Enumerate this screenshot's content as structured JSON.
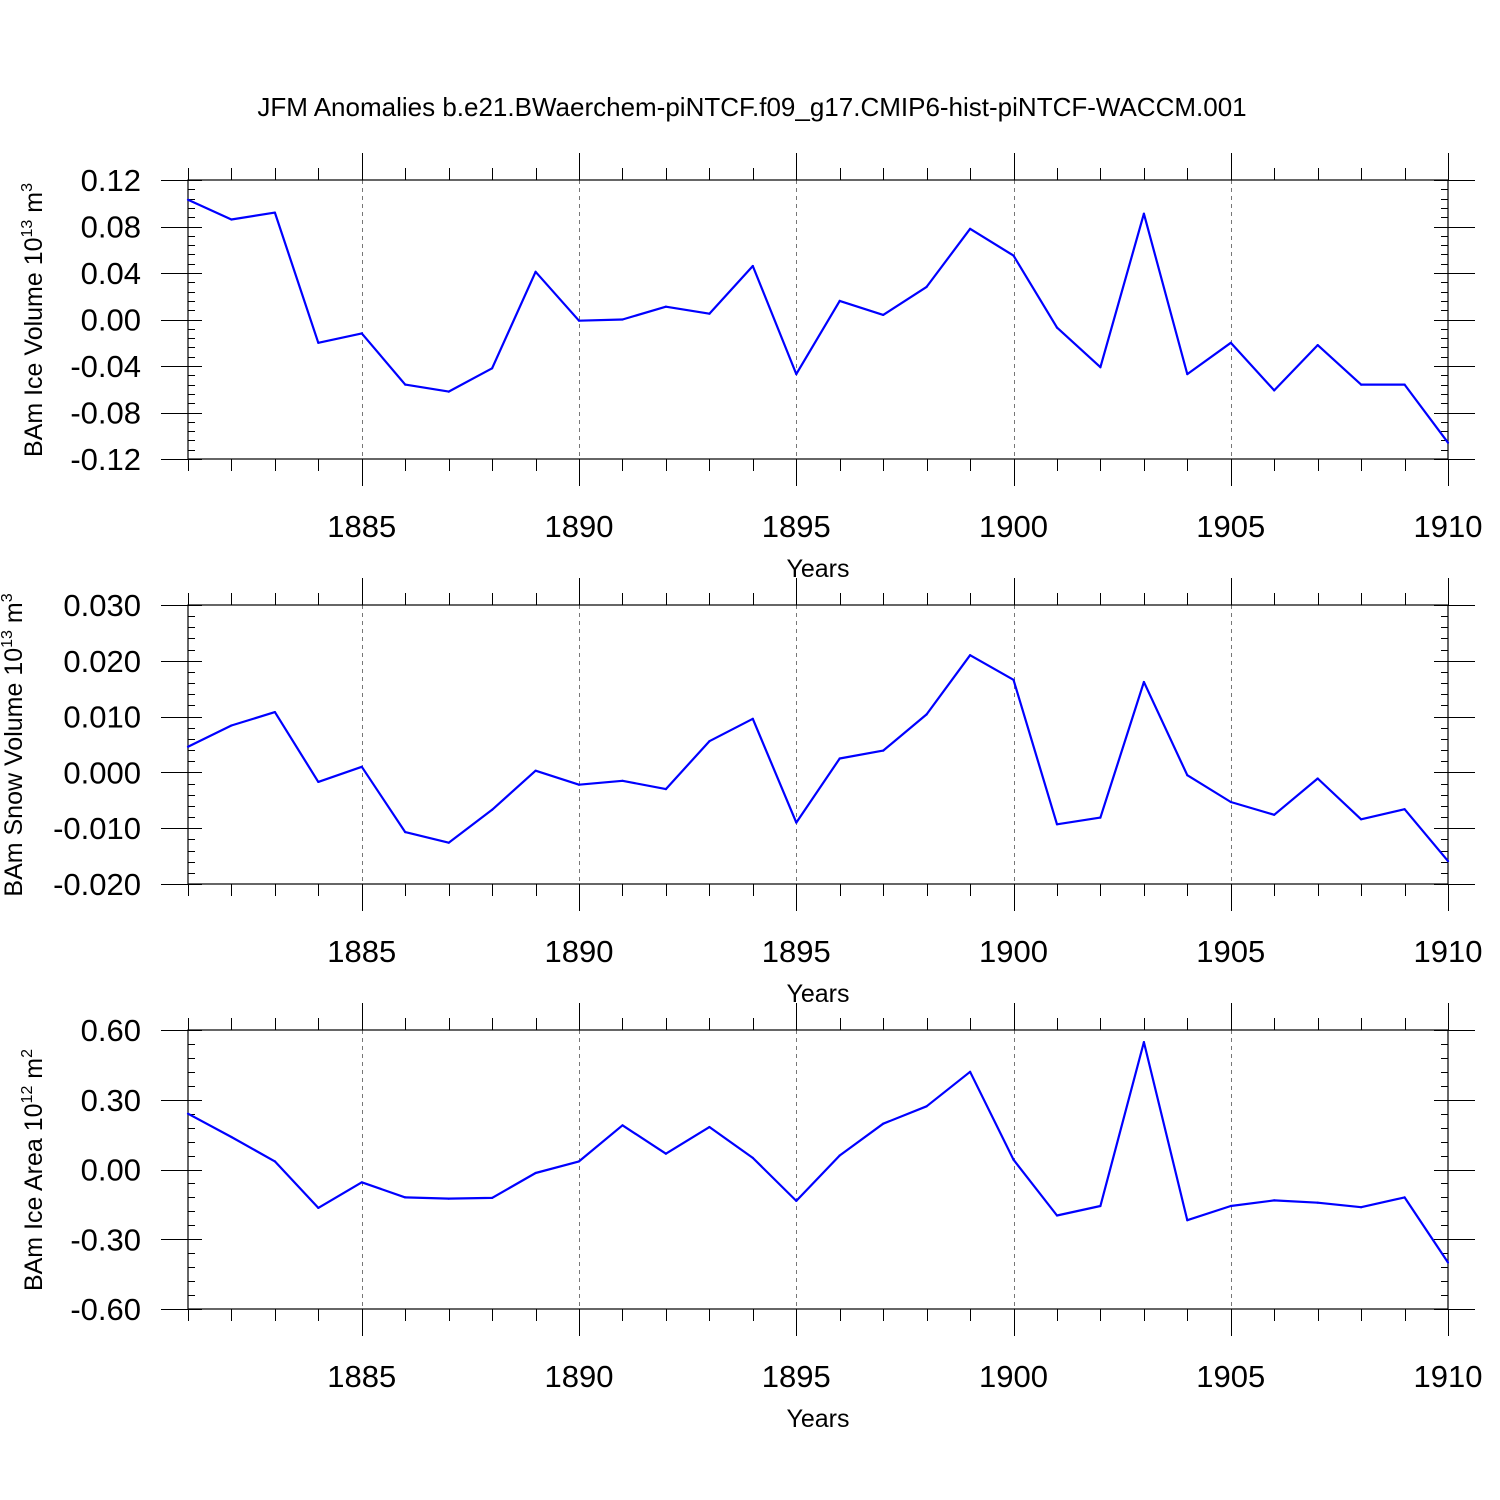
{
  "title": "JFM Anomalies b.e21.BWaerchem-piNTCF.f09_g17.CMIP6-hist-piNTCF-WACCM.001",
  "colors": {
    "line": "#0000ff",
    "frame": "#000000",
    "grid": "#777777"
  },
  "chart_data": [
    {
      "type": "line",
      "ylabel": {
        "text": "BAm Ice Volume 10",
        "exp": "13",
        "unit": " m",
        "unit_exp": "3"
      },
      "xlabel": "Years",
      "xlim": [
        1881,
        1910
      ],
      "ylim": [
        -0.12,
        0.12
      ],
      "yticks": [
        0.12,
        0.08,
        0.04,
        0.0,
        -0.04,
        -0.08,
        -0.12
      ],
      "ytick_labels": [
        "0.12",
        "0.08",
        "0.04",
        "0.00",
        "-0.04",
        "-0.08",
        "-0.12"
      ],
      "yminor_step": 0.008,
      "xticks": [
        1885,
        1890,
        1895,
        1900,
        1905,
        1910
      ],
      "xtick_labels": [
        "1885",
        "1890",
        "1895",
        "1900",
        "1905",
        "1910"
      ],
      "grid": "dashed vertical lines at major x ticks",
      "x": [
        1881,
        1882,
        1883,
        1884,
        1885,
        1886,
        1887,
        1888,
        1889,
        1890,
        1891,
        1892,
        1893,
        1894,
        1895,
        1896,
        1897,
        1898,
        1899,
        1900,
        1901,
        1902,
        1903,
        1904,
        1905,
        1906,
        1907,
        1908,
        1909,
        1910
      ],
      "series": [
        {
          "values": [
            0.103,
            0.086,
            0.092,
            -0.02,
            -0.012,
            -0.056,
            -0.062,
            -0.042,
            0.041,
            -0.001,
            0.0,
            0.011,
            0.005,
            0.046,
            -0.047,
            0.016,
            0.004,
            0.028,
            0.078,
            0.055,
            -0.007,
            -0.041,
            0.091,
            -0.047,
            -0.02,
            -0.061,
            -0.022,
            -0.056,
            -0.056,
            -0.106
          ]
        }
      ]
    },
    {
      "type": "line",
      "ylabel": {
        "text": "BAm Snow Volume 10",
        "exp": "13",
        "unit": " m",
        "unit_exp": "3"
      },
      "xlabel": "Years",
      "xlim": [
        1881,
        1910
      ],
      "ylim": [
        -0.02,
        0.03
      ],
      "yticks": [
        0.03,
        0.02,
        0.01,
        0.0,
        -0.01,
        -0.02
      ],
      "ytick_labels": [
        "0.030",
        "0.020",
        "0.010",
        "0.000",
        "-0.010",
        "-0.020"
      ],
      "yminor_step": 0.002,
      "xticks": [
        1885,
        1890,
        1895,
        1900,
        1905,
        1910
      ],
      "xtick_labels": [
        "1885",
        "1890",
        "1895",
        "1900",
        "1905",
        "1910"
      ],
      "grid": "dashed vertical lines at major x ticks",
      "x": [
        1881,
        1882,
        1883,
        1884,
        1885,
        1886,
        1887,
        1888,
        1889,
        1890,
        1891,
        1892,
        1893,
        1894,
        1895,
        1896,
        1897,
        1898,
        1899,
        1900,
        1901,
        1902,
        1903,
        1904,
        1905,
        1906,
        1907,
        1908,
        1909,
        1910
      ],
      "series": [
        {
          "values": [
            0.0046,
            0.0084,
            0.0108,
            -0.0017,
            0.001,
            -0.0107,
            -0.0126,
            -0.0067,
            0.0003,
            -0.0022,
            -0.0015,
            -0.003,
            0.0056,
            0.0096,
            -0.009,
            0.0025,
            0.0039,
            0.0104,
            0.021,
            0.0166,
            -0.0093,
            -0.0081,
            0.0162,
            -0.0005,
            -0.0053,
            -0.0076,
            -0.0011,
            -0.0084,
            -0.0066,
            -0.0159
          ]
        }
      ]
    },
    {
      "type": "line",
      "ylabel": {
        "text": "BAm Ice Area 10",
        "exp": "12",
        "unit": " m",
        "unit_exp": "2"
      },
      "xlabel": "Years",
      "xlim": [
        1881,
        1910
      ],
      "ylim": [
        -0.6,
        0.6
      ],
      "yticks": [
        0.6,
        0.3,
        0.0,
        -0.3,
        -0.6
      ],
      "ytick_labels": [
        "0.60",
        "0.30",
        "0.00",
        "-0.30",
        "-0.60"
      ],
      "yminor_step": 0.06,
      "xticks": [
        1885,
        1890,
        1895,
        1900,
        1905,
        1910
      ],
      "xtick_labels": [
        "1885",
        "1890",
        "1895",
        "1900",
        "1905",
        "1910"
      ],
      "grid": "dashed vertical lines at major x ticks",
      "x": [
        1881,
        1882,
        1883,
        1884,
        1885,
        1886,
        1887,
        1888,
        1889,
        1890,
        1891,
        1892,
        1893,
        1894,
        1895,
        1896,
        1897,
        1898,
        1899,
        1900,
        1901,
        1902,
        1903,
        1904,
        1905,
        1906,
        1907,
        1908,
        1909,
        1910
      ],
      "series": [
        {
          "values": [
            0.24,
            0.14,
            0.035,
            -0.165,
            -0.055,
            -0.12,
            -0.125,
            -0.122,
            -0.015,
            0.035,
            0.19,
            0.068,
            0.183,
            0.05,
            -0.135,
            0.06,
            0.197,
            0.272,
            0.42,
            0.042,
            -0.198,
            -0.157,
            0.548,
            -0.218,
            -0.157,
            -0.133,
            -0.143,
            -0.162,
            -0.12,
            -0.4
          ]
        }
      ]
    }
  ]
}
